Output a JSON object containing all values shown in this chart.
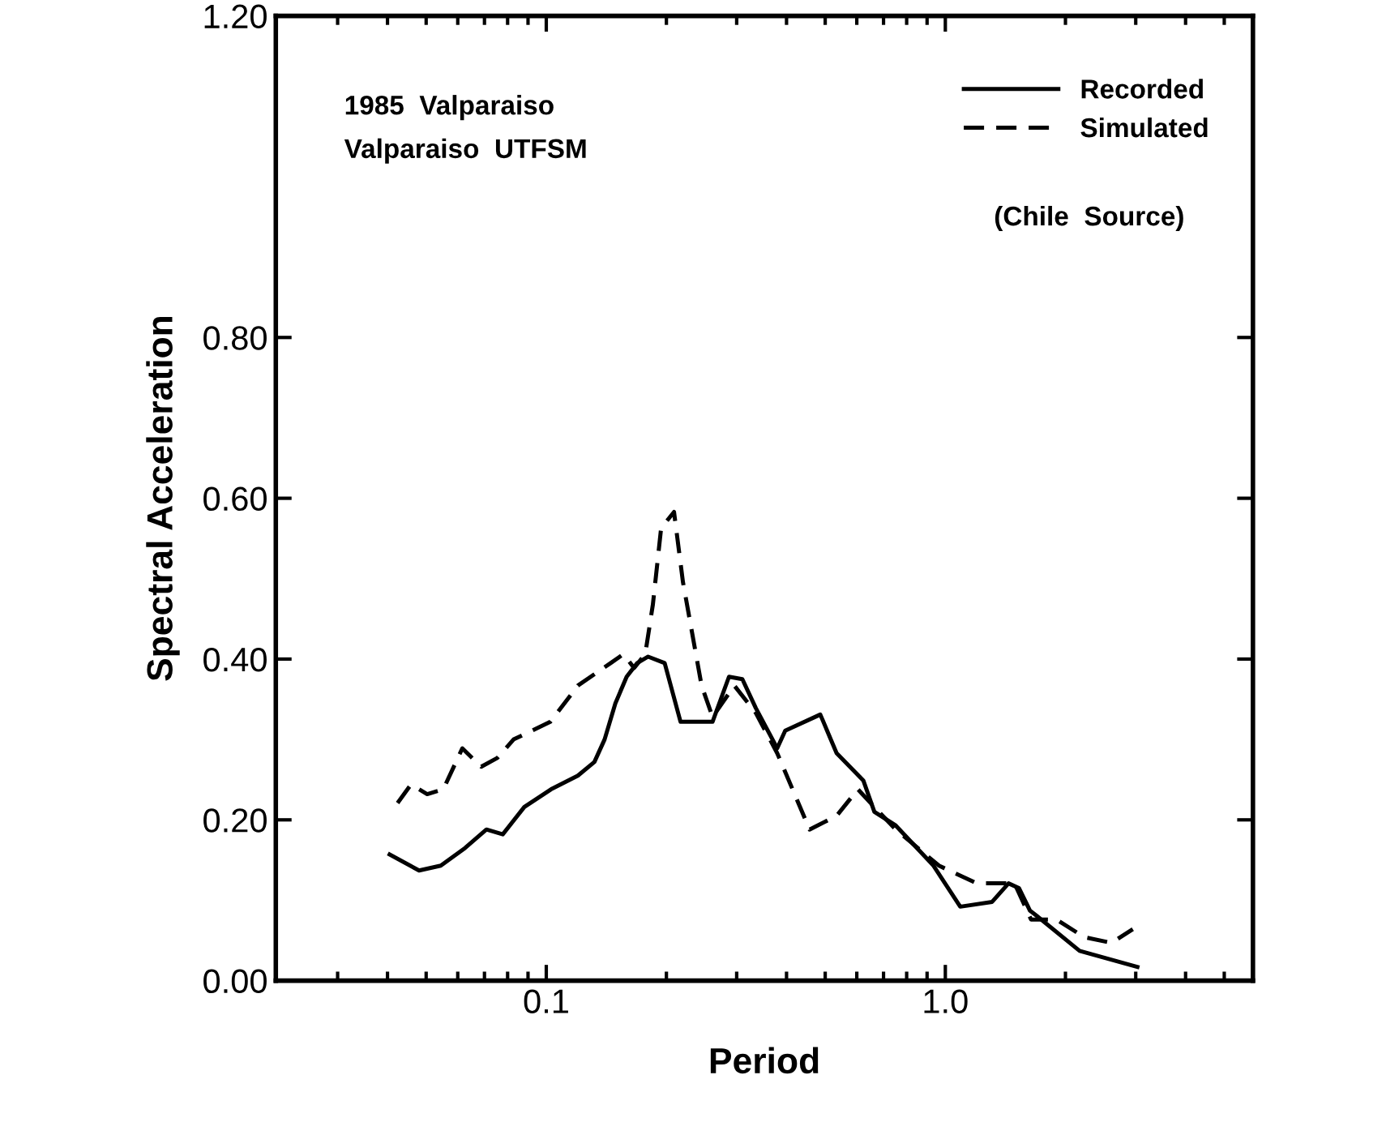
{
  "chart_data": {
    "type": "line",
    "xlabel": "Period",
    "ylabel": "Spectral Acceleration",
    "log": "x",
    "xlim": [
      0.021,
      5.9
    ],
    "xticks": [
      {
        "value": 0.1,
        "label": "0.1"
      },
      {
        "value": 1.0,
        "label": "1.0"
      }
    ],
    "ylim": [
      0,
      1.2
    ],
    "yticks": [
      {
        "value": 0,
        "label": "0.00"
      },
      {
        "value": 0.2,
        "label": "0.20"
      },
      {
        "value": 0.4,
        "label": "0.40"
      },
      {
        "value": 0.6,
        "label": "0.60"
      },
      {
        "value": 0.8,
        "label": "0.80"
      },
      {
        "value": 1.2,
        "label": "1.20"
      }
    ],
    "grid": false,
    "legend": "top right",
    "annotations": [
      "1985  Valparaiso",
      "Valparaiso  UTFSM",
      "(Chile  Source)"
    ],
    "series": [
      {
        "name": "Recorded",
        "color": "#000000",
        "line_style": "solid",
        "x": [
          0.0405,
          0.048,
          0.0544,
          0.0626,
          0.0708,
          0.0778,
          0.0881,
          0.1028,
          0.12,
          0.132,
          0.14,
          0.149,
          0.159,
          0.169,
          0.18,
          0.198,
          0.217,
          0.245,
          0.261,
          0.287,
          0.31,
          0.335,
          0.379,
          0.397,
          0.486,
          0.534,
          0.623,
          0.664,
          0.751,
          0.934,
          1.09,
          1.31,
          1.44,
          1.53,
          1.63,
          1.69,
          2.17,
          3.03
        ],
        "values": [
          0.157,
          0.137,
          0.143,
          0.165,
          0.188,
          0.182,
          0.216,
          0.238,
          0.255,
          0.272,
          0.3,
          0.345,
          0.378,
          0.395,
          0.403,
          0.395,
          0.322,
          0.322,
          0.322,
          0.378,
          0.375,
          0.339,
          0.289,
          0.311,
          0.331,
          0.283,
          0.249,
          0.21,
          0.193,
          0.143,
          0.092,
          0.098,
          0.121,
          0.115,
          0.087,
          0.081,
          0.037,
          0.017
        ]
      },
      {
        "name": "Simulated",
        "color": "#000000",
        "line_style": "dashed",
        "x": [
          0.0424,
          0.0458,
          0.0503,
          0.0552,
          0.0616,
          0.0687,
          0.0754,
          0.0828,
          0.1024,
          0.12,
          0.145,
          0.156,
          0.166,
          0.177,
          0.185,
          0.194,
          0.209,
          0.22,
          0.245,
          0.261,
          0.296,
          0.335,
          0.379,
          0.457,
          0.534,
          0.604,
          0.664,
          0.751,
          0.964,
          1.2,
          1.49,
          1.64,
          1.9,
          2.23,
          2.61,
          2.95
        ],
        "values": [
          0.221,
          0.244,
          0.232,
          0.238,
          0.289,
          0.266,
          0.277,
          0.3,
          0.322,
          0.367,
          0.395,
          0.406,
          0.389,
          0.406,
          0.468,
          0.563,
          0.583,
          0.496,
          0.367,
          0.328,
          0.367,
          0.333,
          0.283,
          0.188,
          0.205,
          0.238,
          0.216,
          0.188,
          0.143,
          0.121,
          0.121,
          0.076,
          0.076,
          0.054,
          0.047,
          0.064
        ]
      }
    ]
  }
}
